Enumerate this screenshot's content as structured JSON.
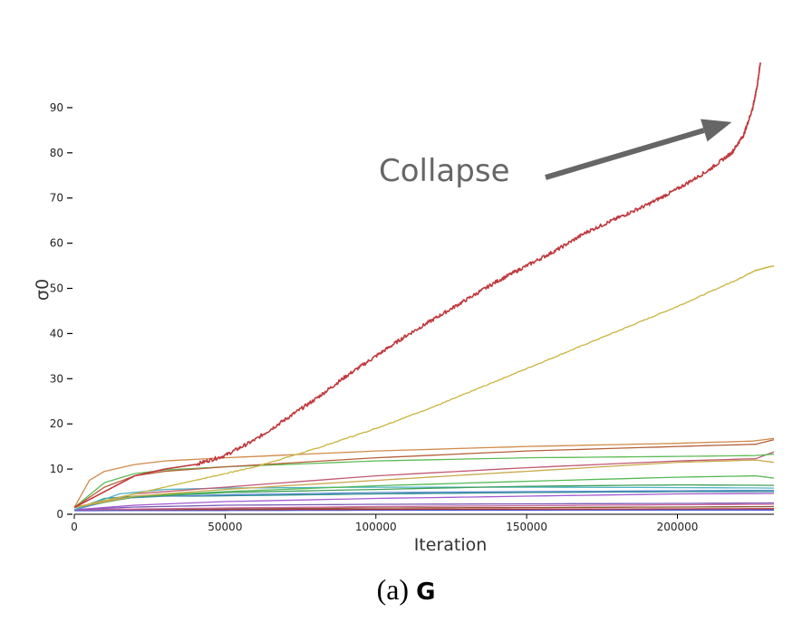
{
  "chart_data": {
    "type": "line",
    "xlabel": "Iteration",
    "ylabel": "σ0",
    "xlim": [
      0,
      232000
    ],
    "ylim": [
      0,
      100
    ],
    "grid": false,
    "legend": "none",
    "x_ticks": [
      0,
      50000,
      100000,
      150000,
      200000
    ],
    "y_ticks": [
      0,
      10,
      20,
      30,
      40,
      50,
      60,
      70,
      80,
      90
    ],
    "annotation": {
      "text": "Collapse",
      "color": "#666666",
      "points_to": {
        "x": 215000,
        "y": 84
      }
    },
    "series": [
      {
        "color": "#c0393d",
        "noise": 0.4,
        "x": [
          0,
          10000,
          20000,
          30000,
          40000,
          50000,
          60000,
          70000,
          80000,
          90000,
          100000,
          110000,
          120000,
          130000,
          140000,
          150000,
          160000,
          170000,
          180000,
          190000,
          200000,
          210000,
          218000,
          222000,
          225000,
          226500,
          227500
        ],
        "y": [
          1.5,
          5,
          8.5,
          10,
          11,
          13,
          16.5,
          21,
          25.5,
          30.5,
          35,
          39.5,
          43.5,
          47.5,
          51.5,
          55,
          58.5,
          62.5,
          65.5,
          68.5,
          72,
          76,
          80,
          84,
          90,
          95,
          100
        ]
      },
      {
        "color": "#c9b43e",
        "noise": 0.1,
        "x": [
          0,
          20000,
          40000,
          60000,
          80000,
          100000,
          120000,
          140000,
          160000,
          180000,
          200000,
          220000,
          226000,
          232000
        ],
        "y": [
          1.5,
          4.5,
          7.5,
          10.5,
          14.5,
          19,
          24,
          29.5,
          35,
          40.5,
          46,
          52,
          54,
          55
        ]
      },
      {
        "color": "#d08a4a",
        "noise": 0,
        "x": [
          0,
          5000,
          10000,
          20000,
          30000,
          50000,
          100000,
          150000,
          200000,
          225000,
          230000,
          232000
        ],
        "y": [
          1.5,
          7.5,
          9.5,
          11,
          11.8,
          12.5,
          14,
          15,
          15.7,
          16.2,
          16.6,
          16.8
        ]
      },
      {
        "color": "#b5603a",
        "noise": 0,
        "x": [
          0,
          10000,
          20000,
          30000,
          50000,
          100000,
          150000,
          200000,
          226000,
          232000
        ],
        "y": [
          1.5,
          6,
          8.5,
          9.5,
          10.5,
          12.5,
          14,
          15,
          15.5,
          16.5
        ]
      },
      {
        "color": "#5dbb55",
        "noise": 0,
        "x": [
          0,
          10000,
          20000,
          30000,
          50000,
          100000,
          150000,
          200000,
          226000,
          232000
        ],
        "y": [
          1.5,
          7,
          9,
          9.8,
          10.5,
          11.8,
          12.5,
          12.8,
          13,
          13.3
        ]
      },
      {
        "color": "#c05a72",
        "noise": 0,
        "x": [
          0,
          20000,
          50000,
          100000,
          150000,
          200000,
          226000,
          232000
        ],
        "y": [
          1.5,
          4.5,
          6,
          8.5,
          10.3,
          11.8,
          12.3,
          13.8
        ]
      },
      {
        "color": "#c8a84a",
        "noise": 0,
        "x": [
          0,
          20000,
          50000,
          100000,
          150000,
          200000,
          226000,
          232000
        ],
        "y": [
          1.5,
          4,
          5.5,
          7.5,
          9.5,
          11.5,
          12,
          11.5
        ]
      },
      {
        "color": "#55b855",
        "noise": 0,
        "x": [
          0,
          20000,
          50000,
          100000,
          150000,
          200000,
          226000,
          232000
        ],
        "y": [
          1.5,
          4,
          5,
          6.3,
          7.3,
          8.2,
          8.5,
          8
        ]
      },
      {
        "color": "#3f9e5a",
        "noise": 0,
        "x": [
          0,
          20000,
          50000,
          100000,
          150000,
          200000,
          232000
        ],
        "y": [
          1.5,
          3.8,
          4.8,
          5.5,
          6.2,
          6.5,
          6.4
        ]
      },
      {
        "color": "#4fb3c4",
        "noise": 0,
        "x": [
          0,
          15000,
          30000,
          50000,
          100000,
          150000,
          200000,
          232000
        ],
        "y": [
          1,
          4.5,
          5.5,
          5.8,
          6,
          6,
          5.9,
          5.8
        ]
      },
      {
        "color": "#5a8bd0",
        "noise": 0,
        "x": [
          0,
          15000,
          30000,
          50000,
          100000,
          150000,
          200000,
          232000
        ],
        "y": [
          1,
          3.5,
          4,
          4.3,
          4.8,
          5,
          5.2,
          5.3
        ]
      },
      {
        "color": "#2f8f8a",
        "noise": 0,
        "x": [
          0,
          10000,
          20000,
          40000,
          100000,
          150000,
          200000,
          232000
        ],
        "y": [
          1,
          3.5,
          4,
          4,
          4.5,
          4.8,
          5,
          5
        ]
      },
      {
        "color": "#a35ad0",
        "noise": 0,
        "x": [
          0,
          20000,
          50000,
          100000,
          150000,
          200000,
          232000
        ],
        "y": [
          1,
          2,
          2.8,
          3.5,
          4,
          4.5,
          4.6
        ]
      },
      {
        "color": "#7a5bb5",
        "noise": 0,
        "x": [
          0,
          20000,
          50000,
          100000,
          150000,
          200000,
          232000
        ],
        "y": [
          1,
          1.6,
          2,
          2.2,
          2.3,
          2.4,
          2.5
        ]
      },
      {
        "color": "#d06aa0",
        "noise": 0,
        "x": [
          0,
          50000,
          100000,
          150000,
          200000,
          232000
        ],
        "y": [
          1,
          1.4,
          1.7,
          1.9,
          2.1,
          2.2
        ]
      },
      {
        "color": "#8a5a3a",
        "noise": 0,
        "x": [
          0,
          50000,
          100000,
          150000,
          200000,
          232000
        ],
        "y": [
          1,
          1.2,
          1.4,
          1.5,
          1.6,
          1.7
        ]
      },
      {
        "color": "#c23a3a",
        "noise": 0,
        "x": [
          0,
          50000,
          100000,
          150000,
          200000,
          232000
        ],
        "y": [
          1,
          1.05,
          1.1,
          1.15,
          1.2,
          1.25
        ]
      },
      {
        "color": "#3a4ad0",
        "noise": 0,
        "x": [
          0,
          50000,
          100000,
          150000,
          200000,
          232000
        ],
        "y": [
          0.8,
          0.85,
          0.9,
          0.9,
          0.95,
          0.95
        ]
      }
    ]
  },
  "caption": {
    "prefix": "(a) ",
    "bold": "G"
  }
}
